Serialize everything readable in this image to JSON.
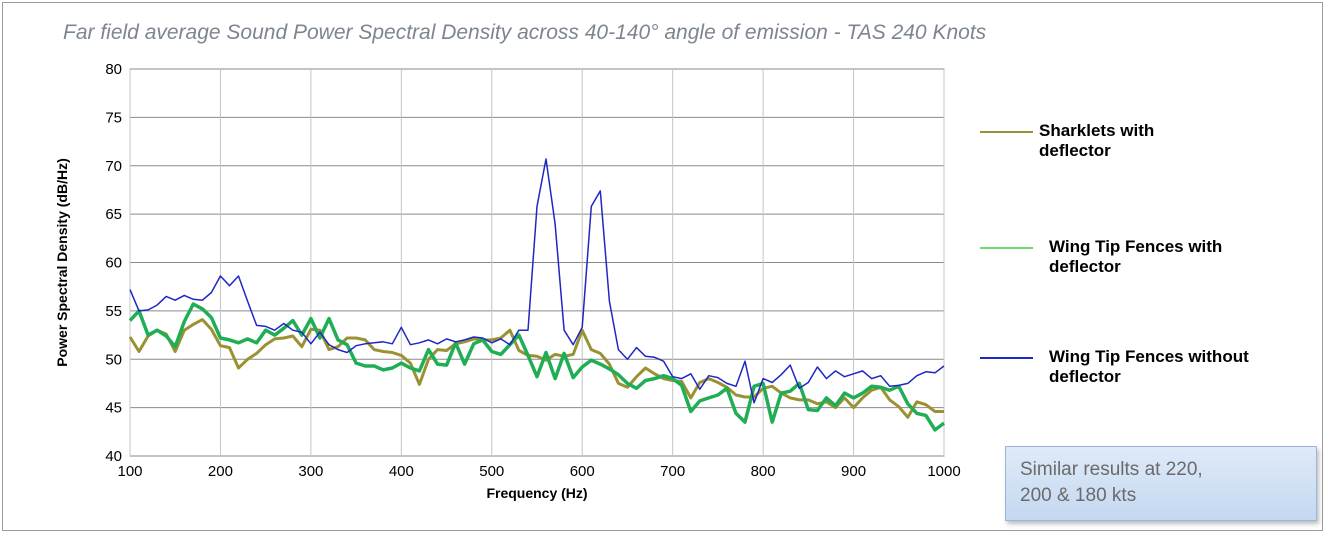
{
  "title": "Far field average Sound Power Spectral Density across 40-140° angle of emission - TAS 240 Knots",
  "note": "Similar results at 220,\n200 & 180 kts",
  "chart_data": {
    "type": "line",
    "xlabel": "Frequency (Hz)",
    "ylabel": "Power Spectral Density (dB/Hz)",
    "xlim": [
      100,
      1000
    ],
    "ylim": [
      40,
      80
    ],
    "xticks": [
      100,
      200,
      300,
      400,
      500,
      600,
      700,
      800,
      900,
      1000
    ],
    "yticks": [
      40,
      45,
      50,
      55,
      60,
      65,
      70,
      75,
      80
    ],
    "grid": true,
    "legend_position": "right",
    "series": [
      {
        "name": "Sharklets with deflector",
        "color": "#9a9232",
        "x": [
          100,
          110,
          120,
          130,
          140,
          150,
          160,
          170,
          180,
          190,
          200,
          210,
          220,
          230,
          240,
          250,
          260,
          270,
          280,
          290,
          300,
          310,
          320,
          330,
          340,
          350,
          360,
          370,
          380,
          390,
          400,
          410,
          420,
          430,
          440,
          450,
          460,
          470,
          480,
          490,
          500,
          510,
          520,
          530,
          540,
          550,
          560,
          570,
          580,
          590,
          600,
          610,
          620,
          630,
          640,
          650,
          660,
          670,
          680,
          690,
          700,
          710,
          720,
          730,
          740,
          750,
          760,
          770,
          780,
          790,
          800,
          810,
          820,
          830,
          840,
          850,
          860,
          870,
          880,
          890,
          900,
          910,
          920,
          930,
          940,
          950,
          960,
          970,
          980,
          990,
          1000
        ],
        "values": [
          52.3,
          50.8,
          52.4,
          53.0,
          52.6,
          50.8,
          53.0,
          53.6,
          54.1,
          53.1,
          51.4,
          51.2,
          49.1,
          50.0,
          50.6,
          51.5,
          52.1,
          52.2,
          52.4,
          51.3,
          53.1,
          53.0,
          51.0,
          51.3,
          52.2,
          52.2,
          52.0,
          51.0,
          50.8,
          50.7,
          50.4,
          49.6,
          47.4,
          50.0,
          51.0,
          50.9,
          51.6,
          51.8,
          52.1,
          52.0,
          52.0,
          52.2,
          53.0,
          50.9,
          50.4,
          50.3,
          49.9,
          50.5,
          50.3,
          50.5,
          53.0,
          51.0,
          50.6,
          49.5,
          47.5,
          47.1,
          48.2,
          49.1,
          48.5,
          48.0,
          47.8,
          47.7,
          46.0,
          47.6,
          48.0,
          47.6,
          47.1,
          46.3,
          46.1,
          46.1,
          47.0,
          47.2,
          46.5,
          46.0,
          45.8,
          45.8,
          45.4,
          45.6,
          45.0,
          46.0,
          45.0,
          46.0,
          46.8,
          47.1,
          45.8,
          45.1,
          44.0,
          45.6,
          45.3,
          44.6,
          44.6
        ]
      },
      {
        "name": "Wing Tip Fences with deflector",
        "color": "#1fae55",
        "x": [
          100,
          110,
          120,
          130,
          140,
          150,
          160,
          170,
          180,
          190,
          200,
          210,
          220,
          230,
          240,
          250,
          260,
          270,
          280,
          290,
          300,
          310,
          320,
          330,
          340,
          350,
          360,
          370,
          380,
          390,
          400,
          410,
          420,
          430,
          440,
          450,
          460,
          470,
          480,
          490,
          500,
          510,
          520,
          530,
          540,
          550,
          560,
          570,
          580,
          590,
          600,
          610,
          620,
          630,
          640,
          650,
          660,
          670,
          680,
          690,
          700,
          710,
          720,
          730,
          740,
          750,
          760,
          770,
          780,
          790,
          800,
          810,
          820,
          830,
          840,
          850,
          860,
          870,
          880,
          890,
          900,
          910,
          920,
          930,
          940,
          950,
          960,
          970,
          980,
          990,
          1000
        ],
        "values": [
          54.0,
          55.0,
          52.5,
          53.0,
          52.4,
          51.3,
          53.9,
          55.7,
          55.2,
          54.3,
          52.2,
          52.0,
          51.7,
          52.1,
          51.7,
          53.0,
          52.5,
          53.2,
          54.0,
          52.5,
          54.2,
          52.2,
          54.2,
          52.0,
          51.5,
          49.6,
          49.3,
          49.3,
          48.9,
          49.1,
          49.6,
          49.1,
          48.8,
          51.0,
          49.5,
          49.4,
          51.7,
          49.5,
          51.6,
          52.0,
          50.8,
          50.5,
          51.5,
          52.5,
          50.4,
          48.2,
          50.7,
          48.0,
          50.6,
          48.1,
          49.2,
          49.9,
          49.5,
          49.0,
          48.4,
          47.5,
          47.0,
          47.8,
          48.0,
          48.3,
          48.0,
          47.3,
          44.6,
          45.7,
          46.0,
          46.3,
          47.0,
          44.4,
          43.5,
          47.2,
          47.5,
          43.5,
          46.5,
          46.7,
          47.5,
          44.8,
          44.7,
          46.0,
          45.2,
          46.5,
          46.0,
          46.5,
          47.2,
          47.1,
          46.8,
          47.2,
          45.4,
          44.4,
          44.2,
          42.7,
          43.4
        ]
      },
      {
        "name": "Wing Tip Fences without deflector",
        "color": "#1f27c4",
        "x": [
          100,
          110,
          120,
          130,
          140,
          150,
          160,
          170,
          180,
          190,
          200,
          210,
          220,
          230,
          240,
          250,
          260,
          270,
          280,
          290,
          300,
          310,
          320,
          330,
          340,
          350,
          360,
          370,
          380,
          390,
          400,
          410,
          420,
          430,
          440,
          450,
          460,
          470,
          480,
          490,
          500,
          510,
          520,
          530,
          540,
          550,
          560,
          570,
          580,
          590,
          600,
          610,
          620,
          630,
          640,
          650,
          660,
          670,
          680,
          690,
          700,
          710,
          720,
          730,
          740,
          750,
          760,
          770,
          780,
          790,
          800,
          810,
          820,
          830,
          840,
          850,
          860,
          870,
          880,
          890,
          900,
          910,
          920,
          930,
          940,
          950,
          960,
          970,
          980,
          990,
          1000
        ],
        "values": [
          57.2,
          55.0,
          55.1,
          55.6,
          56.5,
          56.1,
          56.6,
          56.2,
          56.1,
          56.9,
          58.6,
          57.6,
          58.6,
          56.0,
          53.5,
          53.4,
          53.0,
          53.7,
          53.0,
          52.8,
          51.6,
          52.8,
          51.5,
          51.0,
          50.7,
          51.4,
          51.6,
          51.7,
          51.8,
          51.6,
          53.3,
          51.5,
          51.7,
          52.0,
          51.6,
          52.1,
          51.8,
          52.0,
          52.3,
          52.2,
          51.7,
          52.1,
          51.5,
          53.0,
          53.0,
          65.8,
          70.7,
          64.0,
          53.0,
          51.5,
          53.3,
          65.8,
          67.4,
          56.0,
          51.0,
          50.0,
          51.2,
          50.3,
          50.2,
          49.8,
          48.2,
          48.0,
          48.5,
          46.9,
          48.3,
          48.1,
          47.5,
          47.2,
          49.8,
          45.5,
          48.0,
          47.6,
          48.4,
          49.4,
          47.0,
          47.6,
          49.2,
          48.0,
          48.8,
          48.2,
          48.5,
          48.8,
          48.0,
          48.3,
          47.2,
          47.3,
          47.5,
          48.3,
          48.7,
          48.6,
          49.3
        ]
      }
    ]
  }
}
